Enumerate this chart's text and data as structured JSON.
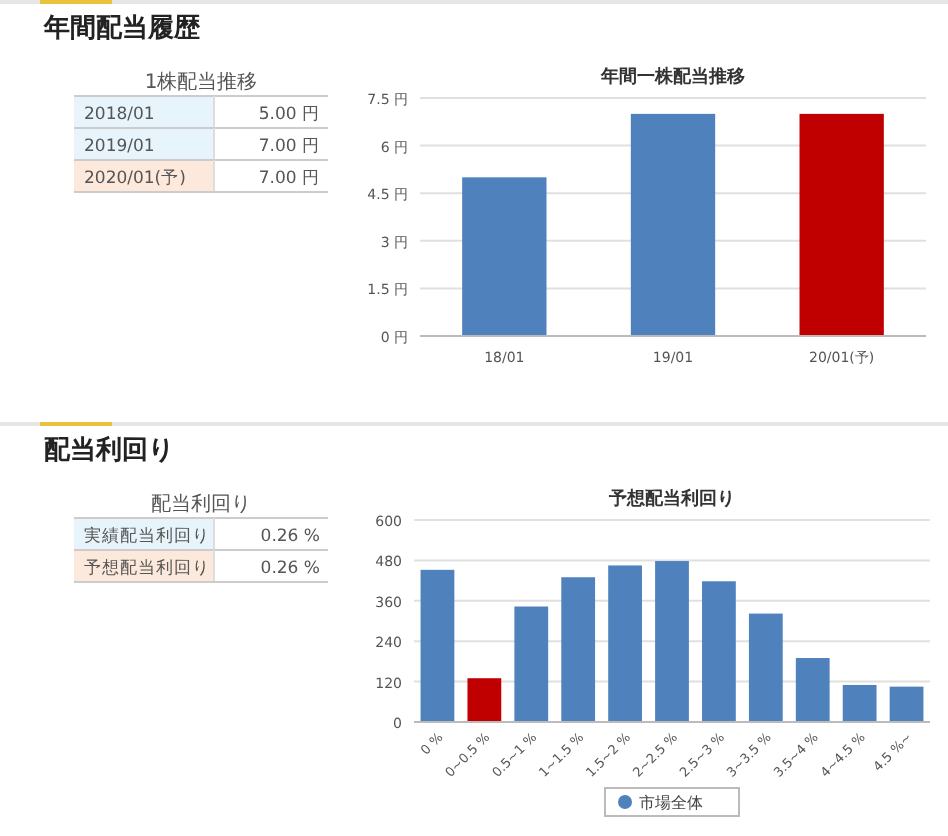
{
  "chart_data": [
    {
      "type": "other",
      "title": "年間配当履歴",
      "subtitle": "1株配当推移",
      "colors": [
        "#e8f4fb",
        "#e8f4fb",
        "#fde9dc"
      ],
      "annotations": [
        "2018/01",
        "5.00 円",
        "2019/01",
        "7.00 円",
        "2020/01(予)",
        "7.00 円"
      ]
    },
    {
      "type": "bar",
      "title": "年間一株配当推移",
      "categories": [
        "18/01",
        "19/01",
        "20/01(予)"
      ],
      "values": [
        5,
        7,
        7
      ],
      "colors": [
        "#4f81bd",
        "#4f81bd",
        "#c00000"
      ],
      "ylim": [
        0,
        7.5
      ],
      "yticks": [
        {
          "value": 0,
          "label": "0 円"
        },
        {
          "value": 1.5,
          "label": "1.5 円"
        },
        {
          "value": 3,
          "label": "3 円"
        },
        {
          "value": 4.5,
          "label": "4.5 円"
        },
        {
          "value": 6,
          "label": "6 円"
        },
        {
          "value": 7.5,
          "label": "7.5 円"
        }
      ],
      "grid": "y"
    },
    {
      "type": "other",
      "title": "配当利回り",
      "subtitle": "配当利回り",
      "colors": [
        "#e8f4fb",
        "#fde9dc"
      ],
      "annotations": [
        "実績配当利回り",
        "0.26 %",
        "予想配当利回り",
        "0.26 %"
      ]
    },
    {
      "type": "bar",
      "title": "予想配当利回り",
      "categories": [
        "0 %",
        "0~0.5 %",
        "0.5~1 %",
        "1~1.5 %",
        "1.5~2 %",
        "2~2.5 %",
        "2.5~3 %",
        "3~3.5 %",
        "3.5~4 %",
        "4~4.5 %",
        "4.5 %~"
      ],
      "series": [
        {
          "name": "市場全体",
          "color": "#4f81bd",
          "values": [
            452,
            null,
            343,
            430,
            465,
            478,
            418,
            322,
            190,
            110,
            105
          ]
        },
        {
          "color": "#c00000",
          "values": [
            null,
            130,
            null,
            null,
            null,
            null,
            null,
            null,
            null,
            null,
            null
          ]
        }
      ],
      "ylim": [
        0,
        600
      ],
      "yticks": [
        0,
        120,
        240,
        360,
        480,
        600
      ],
      "grid": "y",
      "legend": "bottom"
    }
  ]
}
